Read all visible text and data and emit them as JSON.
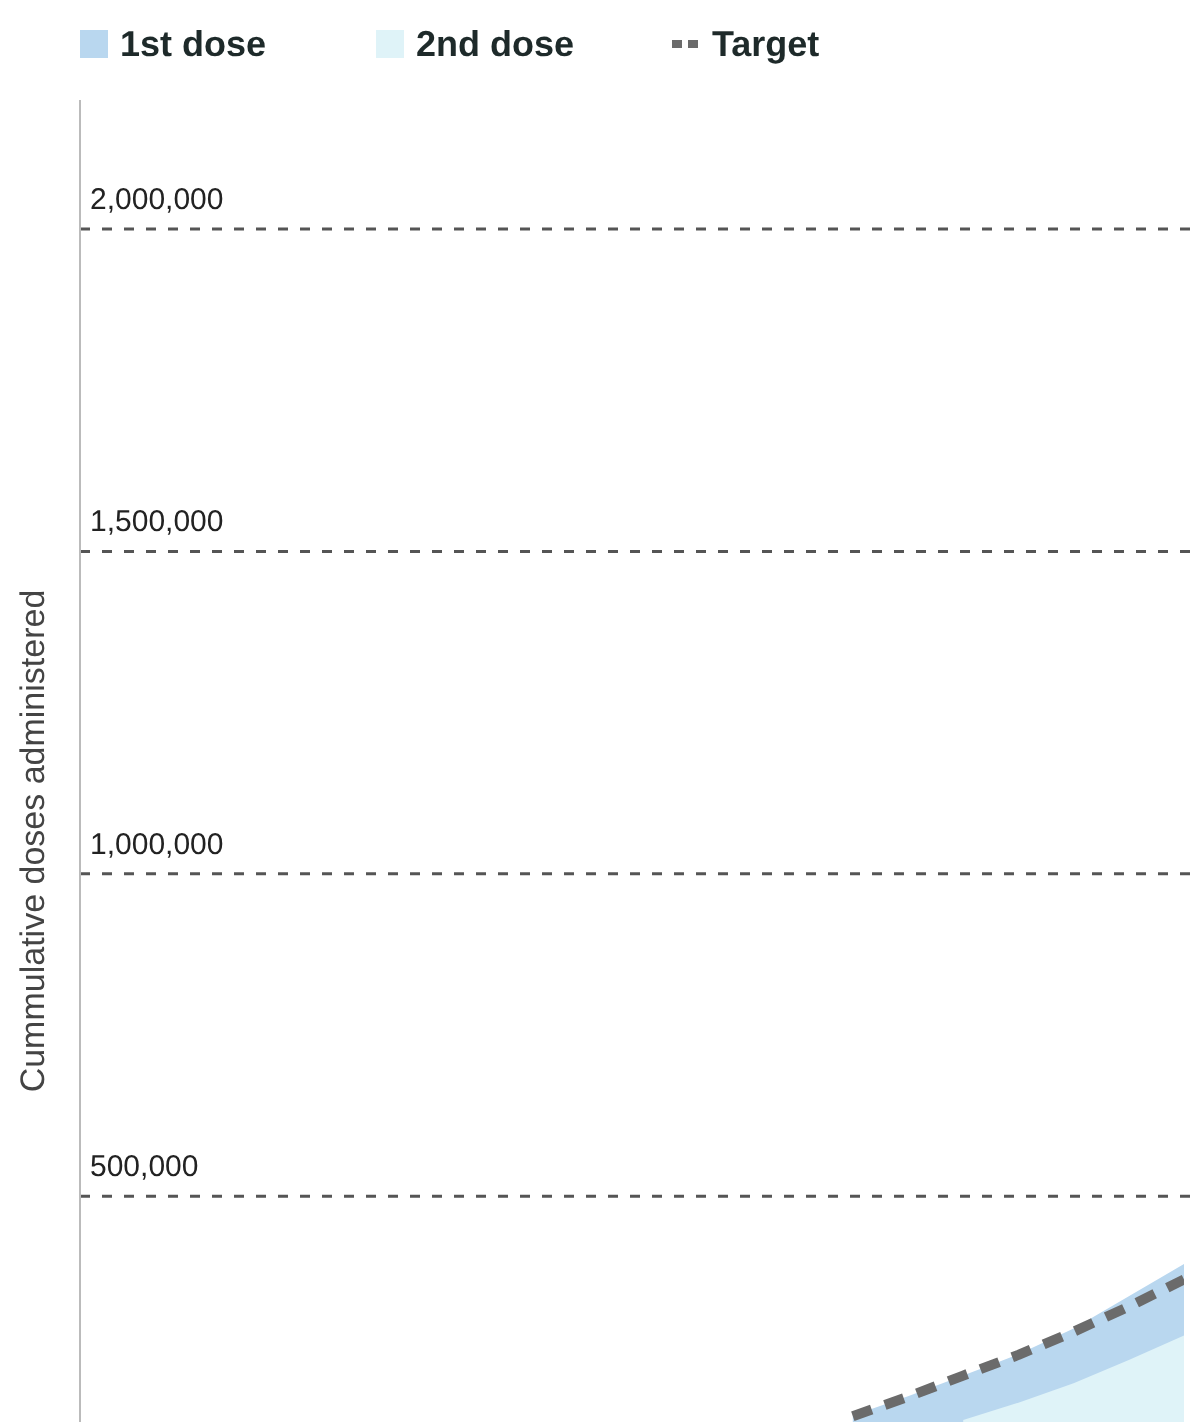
{
  "chart_data": {
    "type": "area",
    "ylabel": "Cummulative doses administered",
    "categories": [
      null,
      null,
      null,
      null,
      null,
      null,
      null,
      null,
      null,
      null,
      null,
      null,
      null,
      null,
      null,
      null,
      null,
      null,
      null,
      null,
      null
    ],
    "series": [
      {
        "name": "1st dose",
        "color": "#b9d7ef",
        "values": [
          null,
          null,
          null,
          null,
          null,
          null,
          null,
          null,
          null,
          null,
          null,
          null,
          null,
          null,
          160000,
          190000,
          222000,
          255000,
          295000,
          345000,
          395000
        ]
      },
      {
        "name": "2nd dose",
        "color": "#dff3f8",
        "values": [
          null,
          null,
          null,
          null,
          null,
          null,
          null,
          null,
          null,
          null,
          null,
          null,
          null,
          null,
          null,
          null,
          153000,
          180000,
          210000,
          246000,
          284000
        ]
      },
      {
        "name": "Target",
        "type": "line",
        "color": "#6b6b6b",
        "line_style": "dashed",
        "values": [
          null,
          null,
          null,
          null,
          null,
          null,
          null,
          null,
          null,
          null,
          null,
          null,
          null,
          null,
          159000,
          189000,
          222000,
          254000,
          290000,
          329000,
          371000
        ]
      }
    ],
    "ylim": [
      150000,
      2200000
    ],
    "yticks": [
      {
        "value": 500000,
        "label": "500,000"
      },
      {
        "value": 1000000,
        "label": "1,000,000"
      },
      {
        "value": 1500000,
        "label": "1,500,000"
      },
      {
        "value": 2000000,
        "label": "2,000,000"
      }
    ],
    "grid": "y",
    "legend": "top left",
    "tick_labels": "y"
  }
}
